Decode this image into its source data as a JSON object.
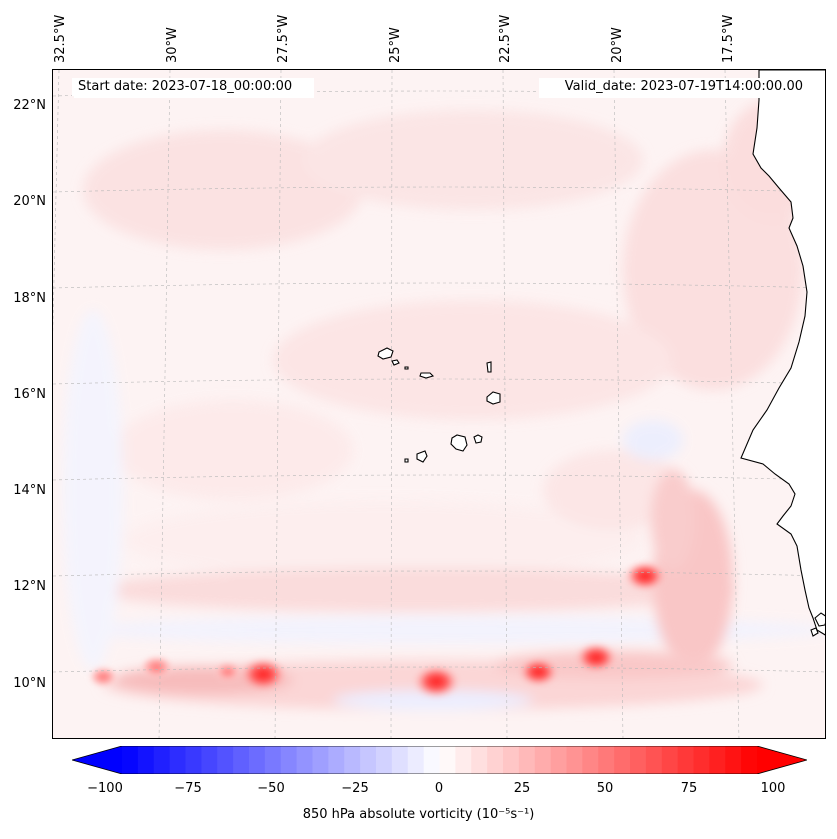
{
  "map": {
    "start_date": "Start date: 2023-07-18_00:00:00",
    "valid_date": "Valid_date: 2023-07-19T14:00:00.00",
    "longitude_labels": [
      "32.5°W",
      "30°W",
      "27.5°W",
      "25°W",
      "22.5°W",
      "20°W",
      "17.5°W"
    ],
    "latitude_labels": [
      "22°N",
      "20°N",
      "18°N",
      "16°N",
      "14°N",
      "12°N",
      "10°N"
    ],
    "field": "850 hPa absolute vorticity",
    "vorticity_maxima": [
      {
        "lon": -19.3,
        "lat": 12.0,
        "value": 75
      },
      {
        "lon": -27.9,
        "lat": 9.95,
        "value": 90
      },
      {
        "lon": -24.0,
        "lat": 9.8,
        "value": 90
      },
      {
        "lon": -21.7,
        "lat": 10.0,
        "value": 70
      },
      {
        "lon": -20.4,
        "lat": 10.3,
        "value": 75
      },
      {
        "lon": -30.3,
        "lat": 10.1,
        "value": 45
      },
      {
        "lon": -31.5,
        "lat": 9.9,
        "value": 35
      },
      {
        "lon": -28.7,
        "lat": 10.0,
        "value": 30
      }
    ]
  },
  "colorbar": {
    "label": "850 hPa absolute vorticity (10⁻⁵s⁻¹)",
    "ticks": [
      "−100",
      "−75",
      "−50",
      "−25",
      "0",
      "25",
      "50",
      "75",
      "100"
    ],
    "min": -100,
    "max": 100,
    "colors": {
      "negative": "#0000ff",
      "zero": "#ffffff",
      "positive": "#ff0000"
    }
  }
}
